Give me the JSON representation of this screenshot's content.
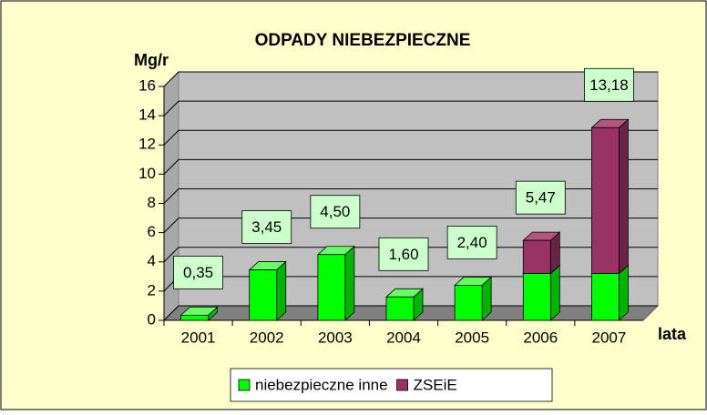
{
  "chart_data": {
    "type": "bar3d_stacked",
    "title": "ODPADY NIEBEZPIECZNE",
    "y_label": "Mg/r",
    "x_label": "lata",
    "categories": [
      "2001",
      "2002",
      "2003",
      "2004",
      "2005",
      "2006",
      "2007"
    ],
    "series": [
      {
        "name": "niebezpieczne inne",
        "color": "#00ff00",
        "values": [
          0.35,
          3.45,
          4.5,
          1.6,
          2.4,
          3.2,
          3.2
        ]
      },
      {
        "name": "ZSEiE",
        "color": "#993366",
        "values": [
          null,
          null,
          null,
          null,
          null,
          2.27,
          9.98
        ]
      }
    ],
    "totals": [
      0.35,
      3.45,
      4.5,
      1.6,
      2.4,
      5.47,
      13.18
    ],
    "total_labels": [
      "0,35",
      "3,45",
      "4,50",
      "1,60",
      "2,40",
      "5,47",
      "13,18"
    ],
    "ylim": [
      0,
      16
    ],
    "yticks": [
      0,
      2,
      4,
      6,
      8,
      10,
      12,
      14,
      16
    ],
    "grid": true,
    "legend": "bottom"
  }
}
